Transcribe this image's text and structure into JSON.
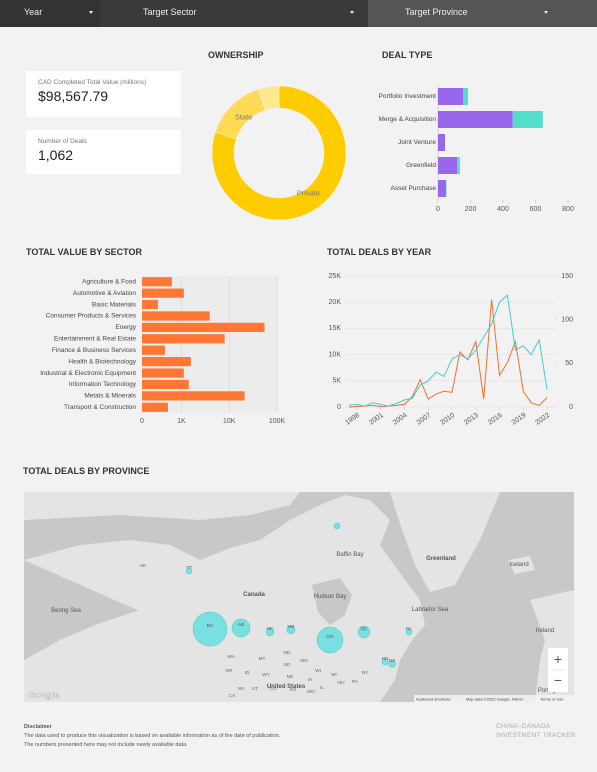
{
  "filters": [
    "Year",
    "Target Sector",
    "Target Province"
  ],
  "kpis": [
    {
      "label": "CAD Completed Total Value (millions)",
      "value": "$98,567.79"
    },
    {
      "label": "Number of Deals",
      "value": "1,062"
    }
  ],
  "chart_data": [
    {
      "type": "pie",
      "title": "OWNERSHIP",
      "donut": true,
      "categories": [
        "Private",
        "State",
        null
      ],
      "values": [
        80,
        15,
        5
      ],
      "colors": [
        "#ffcc00",
        "#ffdb55",
        "#ffe98f"
      ]
    },
    {
      "type": "stacked_bar_h",
      "title": "DEAL TYPE",
      "categories": [
        "Portfolio Investment",
        "Merge & Acquisition",
        "Joint Venture",
        "Greenfield",
        "Asset Purchase"
      ],
      "series": [
        {
          "color": "#9966ee",
          "values": [
            154,
            460,
            43,
            117,
            49
          ]
        },
        {
          "color": "#55ddcc",
          "values": [
            31,
            185,
            0,
            18,
            3
          ]
        }
      ],
      "xlim": [
        0,
        800
      ],
      "xticks": [
        0,
        200,
        400,
        600,
        800
      ]
    },
    {
      "type": "bar_h",
      "title": "TOTAL VALUE BY SECTOR",
      "categories": [
        "Agriculture & Food",
        "Automotive & Aviation",
        "Basic Materials",
        "Consumer Products & Services",
        "Energy",
        "Entertainment & Real Estate",
        "Finance & Business Services",
        "Health & Biotechnology",
        "Industrial & Electronic Equipment",
        "Information Technology",
        "Metals & Minerals",
        "Transport & Construction"
      ],
      "values": [
        632,
        1125,
        323,
        3915,
        54800,
        8040,
        452,
        1573,
        1125,
        1430,
        21000,
        522
      ],
      "color": "#ff7733",
      "xscale": "log",
      "xlim": [
        150,
        100000
      ],
      "x_origin_label": "0",
      "xticks": [
        {
          "value": 1000,
          "label": "1K"
        },
        {
          "value": 10000,
          "label": "10K"
        },
        {
          "value": 100000,
          "label": "100K"
        }
      ],
      "grid": true
    },
    {
      "type": "line",
      "title": "TOTAL DEALS BY YEAR",
      "x": [
        1997,
        1998,
        1999,
        2000,
        2001,
        2002,
        2003,
        2004,
        2005,
        2006,
        2007,
        2008,
        2009,
        2010,
        2011,
        2012,
        2013,
        2014,
        2015,
        2016,
        2017,
        2018,
        2019,
        2020,
        2021,
        2022
      ],
      "series": [
        {
          "color": "#f07030",
          "values": [
            0,
            100,
            200,
            300,
            100,
            200,
            300,
            500,
            2000,
            5200,
            1500,
            2500,
            3000,
            2800,
            10500,
            9000,
            12500,
            1500,
            20500,
            6000,
            8500,
            12500,
            3000,
            800,
            300,
            1800
          ]
        },
        {
          "color": "#44cccc",
          "axis": "y2",
          "values": [
            2,
            3,
            1,
            5,
            3,
            1,
            4,
            8,
            10,
            25,
            30,
            40,
            35,
            55,
            60,
            55,
            65,
            80,
            95,
            120,
            128,
            65,
            70,
            60,
            77,
            20
          ]
        }
      ],
      "xlim": [
        1996.5,
        2023
      ],
      "xticks": [
        1998,
        2001,
        2004,
        2007,
        2010,
        2013,
        2016,
        2019,
        2022
      ],
      "ylim": [
        0,
        25000
      ],
      "yticks": [
        0,
        {
          "value": 5000,
          "label": "5K"
        },
        {
          "value": 10000,
          "label": "10K"
        },
        {
          "value": 15000,
          "label": "15K"
        },
        {
          "value": 20000,
          "label": "20K"
        },
        {
          "value": 25000,
          "label": "25K"
        }
      ],
      "y2lim": [
        0,
        150
      ],
      "y2ticks": [
        0,
        50,
        100,
        150
      ]
    }
  ],
  "map": {
    "title": "TOTAL DEALS BY PROVINCE",
    "bubble_color": "#55dddd",
    "provinces": [
      {
        "name": "BC",
        "deals": 475
      },
      {
        "name": "AB",
        "deals": 133
      },
      {
        "name": "SK",
        "deals": 26
      },
      {
        "name": "MB",
        "deals": 26
      },
      {
        "name": "ON",
        "deals": 278
      },
      {
        "name": "QC",
        "deals": 59
      },
      {
        "name": "NL",
        "deals": 15
      },
      {
        "name": "NB",
        "deals": 15
      },
      {
        "name": "NS",
        "deals": 20
      },
      {
        "name": "YT",
        "deals": 15
      },
      {
        "name": null,
        "deals": 15
      }
    ],
    "place_labels": [
      "Canada",
      "Greenland",
      "Iceland",
      "Hudson Bay",
      "Baffin Bay",
      "Labrador Sea",
      "Bering Sea",
      "United States",
      "Ireland",
      "Portugal",
      "AK",
      "WA",
      "MT",
      "ND",
      "MN",
      "OR",
      "ID",
      "SD",
      "WI",
      "MI",
      "NY",
      "CA",
      "NV",
      "WY",
      "NE",
      "IA",
      "IL",
      "OH",
      "PA",
      "UT",
      "CO",
      "KS",
      "MO"
    ],
    "zoom_in": "+",
    "zoom_out": "−",
    "logo": "Google",
    "attribution": [
      "Keyboard shortcuts",
      "Map data ©2022 Google, INEGI",
      "Terms of Use"
    ]
  },
  "footer": {
    "disclaimer_title": "Disclaimer",
    "disclaimer_lines": [
      "The data used to produce this visualization is based on available information as of the date of publication.",
      "The numbers presented here may not include newly available data."
    ],
    "brand": [
      "CHINA–CANADA",
      "INVESTMENT TRACKER"
    ]
  }
}
